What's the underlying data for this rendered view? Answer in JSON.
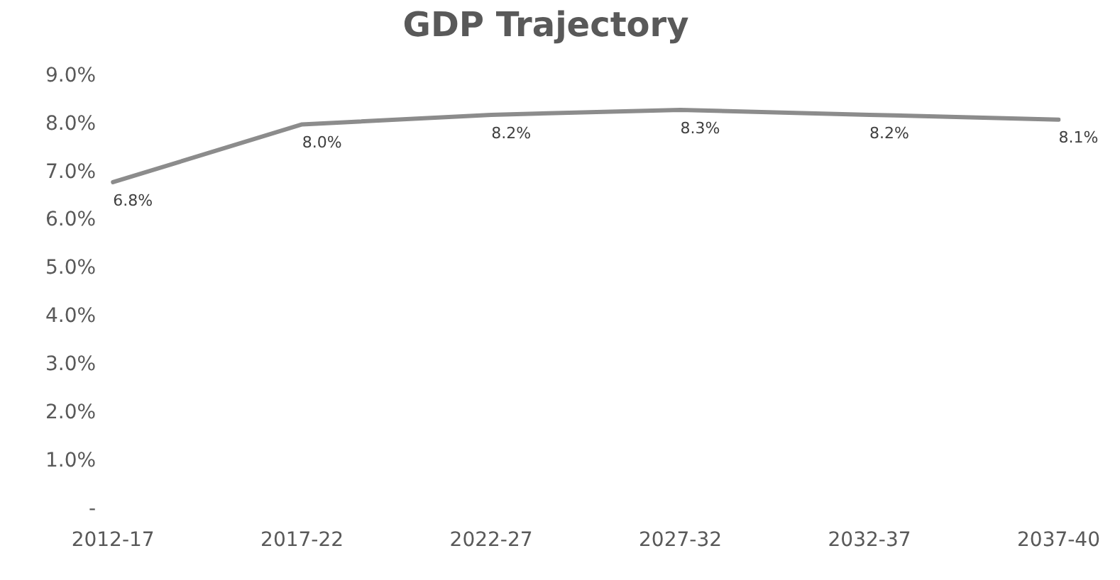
{
  "chart_data": {
    "type": "line",
    "title": "GDP Trajectory",
    "categories": [
      "2012-17",
      "2017-22",
      "2022-27",
      "2027-32",
      "2032-37",
      "2037-40"
    ],
    "series": [
      {
        "color": "#8c8c8c",
        "values": [
          6.8,
          8.0,
          8.2,
          8.3,
          8.2,
          8.1
        ],
        "value_labels": [
          "6.8%",
          "8.0%",
          "8.2%",
          "8.3%",
          "8.2%",
          "8.1%"
        ]
      }
    ],
    "ylim": [
      0,
      9
    ],
    "yticks": [
      {
        "value": 0,
        "label": "-"
      },
      {
        "value": 1,
        "label": "1.0%"
      },
      {
        "value": 2,
        "label": "2.0%"
      },
      {
        "value": 3,
        "label": "3.0%"
      },
      {
        "value": 4,
        "label": "4.0%"
      },
      {
        "value": 5,
        "label": "5.0%"
      },
      {
        "value": 6,
        "label": "6.0%"
      },
      {
        "value": 7,
        "label": "7.0%"
      },
      {
        "value": 8,
        "label": "8.0%"
      },
      {
        "value": 9,
        "label": "9.0%"
      }
    ],
    "grid": false,
    "legend": false,
    "marker": "none",
    "line_style": "solid"
  }
}
